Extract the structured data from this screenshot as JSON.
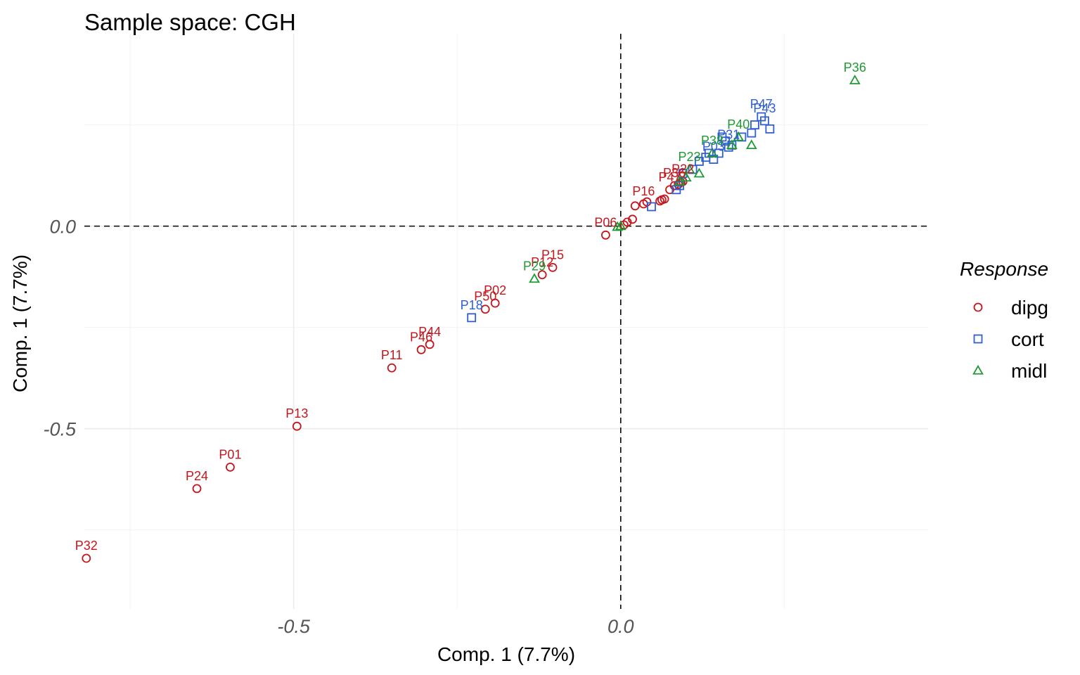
{
  "chart_data": {
    "type": "scatter",
    "title": "Sample space: CGH",
    "xlabel": "Comp. 1 (7.7%)",
    "ylabel": "Comp. 1 (7.7%)",
    "xlim": [
      -0.82,
      0.47
    ],
    "ylim": [
      -0.945,
      0.475
    ],
    "x_ticks": [
      -0.5,
      0.0
    ],
    "x_tick_labels": [
      "-0.5",
      "0.0"
    ],
    "y_ticks": [
      -0.5,
      0.0
    ],
    "y_tick_labels": [
      "-0.5",
      "0.0"
    ],
    "grid": true,
    "reference_lines": {
      "x": 0,
      "y": 0,
      "style": "dashed"
    },
    "legend": {
      "title": "Response",
      "position": "right"
    },
    "series": [
      {
        "name": "dipg",
        "marker": "circle",
        "color": "#c4161c",
        "points": [
          {
            "x": -0.817,
            "y": -0.82,
            "label": "P32"
          },
          {
            "x": -0.648,
            "y": -0.648,
            "label": "P24"
          },
          {
            "x": -0.597,
            "y": -0.595,
            "label": "P01"
          },
          {
            "x": -0.495,
            "y": -0.494,
            "label": "P13"
          },
          {
            "x": -0.35,
            "y": -0.35,
            "label": "P11"
          },
          {
            "x": -0.305,
            "y": -0.305,
            "label": "P46"
          },
          {
            "x": -0.292,
            "y": -0.292,
            "label": "P44"
          },
          {
            "x": -0.207,
            "y": -0.205,
            "label": "P50"
          },
          {
            "x": -0.192,
            "y": -0.19,
            "label": "P02"
          },
          {
            "x": -0.12,
            "y": -0.12,
            "label": "P12"
          },
          {
            "x": -0.104,
            "y": -0.102,
            "label": "P15"
          },
          {
            "x": -0.023,
            "y": -0.022,
            "label": "P06"
          },
          {
            "x": 0.005,
            "y": 0.003
          },
          {
            "x": 0.01,
            "y": 0.01
          },
          {
            "x": 0.018,
            "y": 0.017
          },
          {
            "x": 0.022,
            "y": 0.05
          },
          {
            "x": 0.035,
            "y": 0.055,
            "label": "P16"
          },
          {
            "x": 0.04,
            "y": 0.06
          },
          {
            "x": 0.06,
            "y": 0.062
          },
          {
            "x": 0.063,
            "y": 0.065
          },
          {
            "x": 0.067,
            "y": 0.067
          },
          {
            "x": 0.075,
            "y": 0.09,
            "label": "P47"
          },
          {
            "x": 0.082,
            "y": 0.1,
            "label": "P36"
          },
          {
            "x": 0.088,
            "y": 0.103
          },
          {
            "x": 0.092,
            "y": 0.108
          },
          {
            "x": 0.095,
            "y": 0.11,
            "label": "P22"
          }
        ]
      },
      {
        "name": "cort",
        "marker": "square",
        "color": "#2f5fd0",
        "points": [
          {
            "x": -0.228,
            "y": -0.226,
            "label": "P18"
          },
          {
            "x": 0.047,
            "y": 0.048
          },
          {
            "x": 0.085,
            "y": 0.09
          },
          {
            "x": 0.09,
            "y": 0.1
          },
          {
            "x": 0.095,
            "y": 0.13
          },
          {
            "x": 0.11,
            "y": 0.14
          },
          {
            "x": 0.12,
            "y": 0.16
          },
          {
            "x": 0.13,
            "y": 0.17
          },
          {
            "x": 0.135,
            "y": 0.18
          },
          {
            "x": 0.142,
            "y": 0.165,
            "label": "P03"
          },
          {
            "x": 0.15,
            "y": 0.18
          },
          {
            "x": 0.155,
            "y": 0.22
          },
          {
            "x": 0.16,
            "y": 0.21
          },
          {
            "x": 0.165,
            "y": 0.195,
            "label": "P31"
          },
          {
            "x": 0.17,
            "y": 0.2
          },
          {
            "x": 0.185,
            "y": 0.22
          },
          {
            "x": 0.2,
            "y": 0.23
          },
          {
            "x": 0.205,
            "y": 0.25
          },
          {
            "x": 0.215,
            "y": 0.27,
            "label": "P47"
          },
          {
            "x": 0.22,
            "y": 0.26,
            "label": "P43"
          },
          {
            "x": 0.228,
            "y": 0.24
          }
        ]
      },
      {
        "name": "midl",
        "marker": "triangle",
        "color": "#1e9a34",
        "points": [
          {
            "x": 0.358,
            "y": 0.36,
            "label": "P36"
          },
          {
            "x": -0.132,
            "y": -0.13,
            "label": "P29"
          },
          {
            "x": -0.005,
            "y": -0.002
          },
          {
            "x": 0.0,
            "y": 0.0
          },
          {
            "x": 0.09,
            "y": 0.11
          },
          {
            "x": 0.1,
            "y": 0.12
          },
          {
            "x": 0.105,
            "y": 0.14,
            "label": "P23"
          },
          {
            "x": 0.12,
            "y": 0.13
          },
          {
            "x": 0.14,
            "y": 0.18,
            "label": "P38"
          },
          {
            "x": 0.17,
            "y": 0.2
          },
          {
            "x": 0.18,
            "y": 0.22,
            "label": "P40"
          },
          {
            "x": 0.2,
            "y": 0.2
          }
        ]
      }
    ]
  }
}
